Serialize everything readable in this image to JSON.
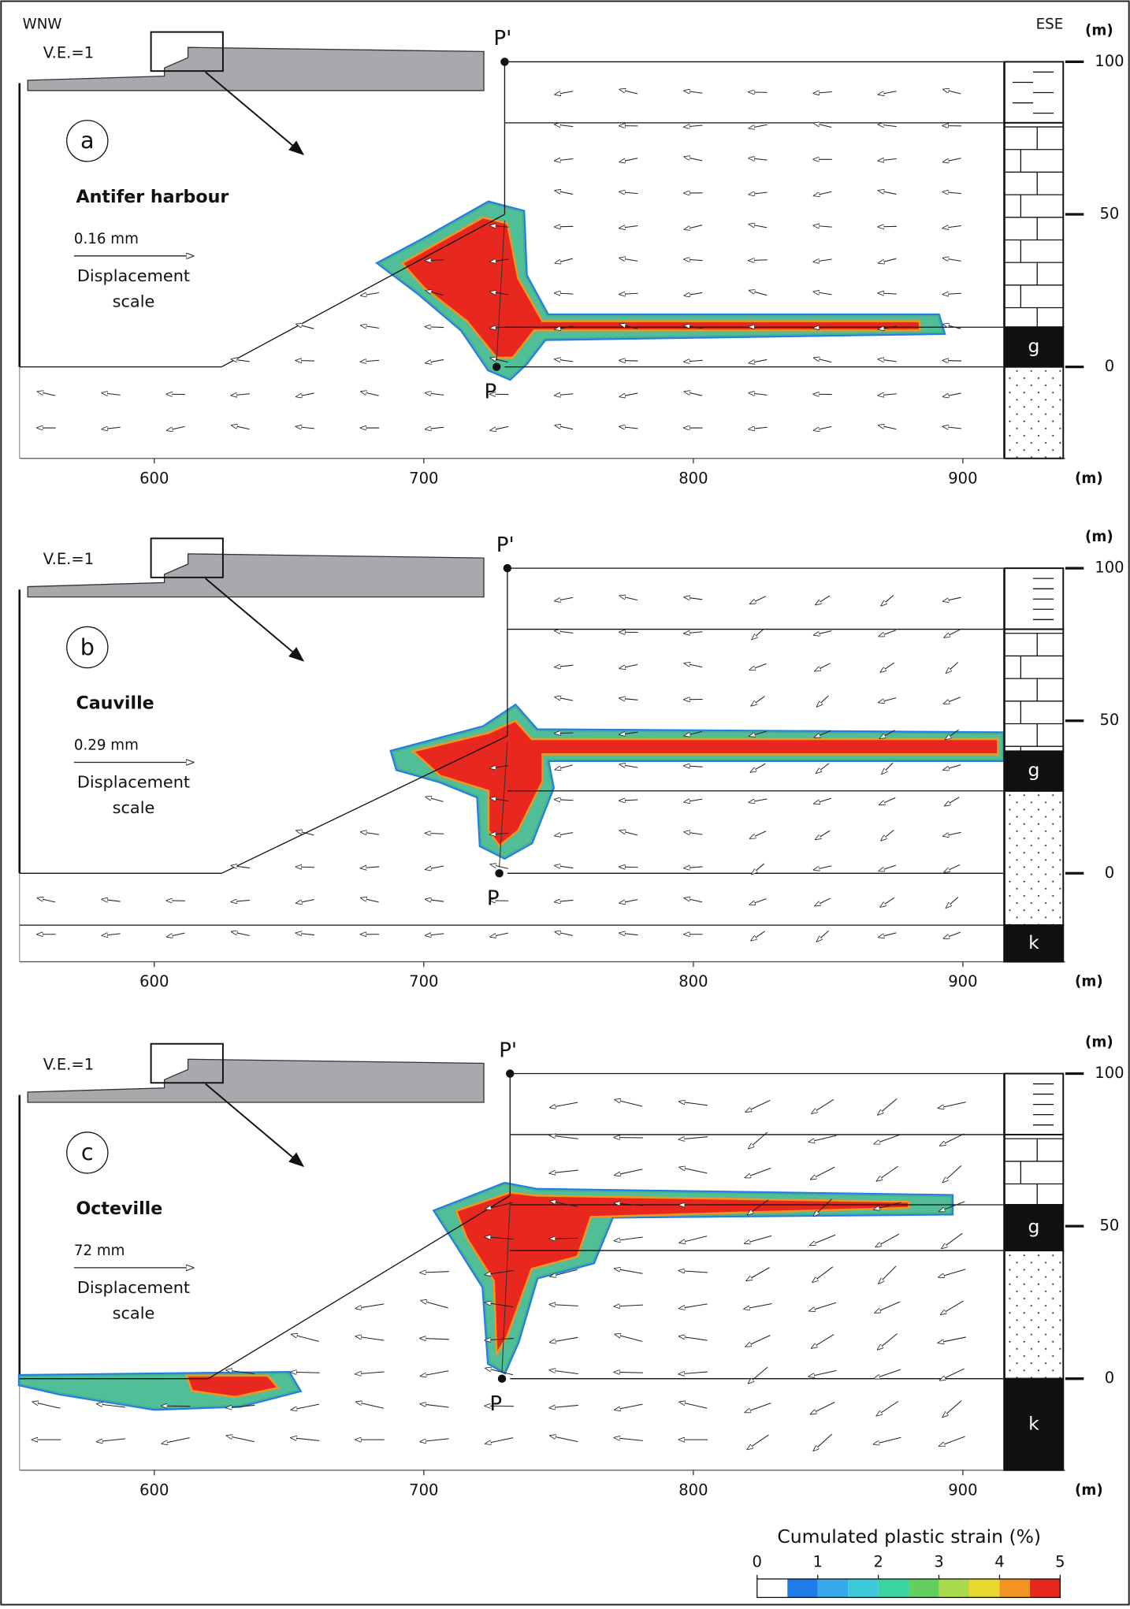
{
  "header": {
    "left": "WNW",
    "right": "ESE"
  },
  "axis": {
    "xlim": [
      550,
      938
    ],
    "xticks": [
      600,
      700,
      800,
      900
    ]
  },
  "panels": [
    {
      "label": "a",
      "site": "Antifer harbour",
      "ve": "V.E.=1",
      "scale_value": "0.16 mm",
      "scale_text": [
        "Displacement",
        "scale"
      ],
      "top_point": "P'",
      "bottom_point": "P",
      "ylim": [
        -30,
        100
      ],
      "yticks": [
        0,
        50,
        100
      ],
      "y_unit": "(m)",
      "x_unit": "(m)",
      "layers": [
        "g"
      ]
    },
    {
      "label": "b",
      "site": "Cauville",
      "ve": "V.E.=1",
      "scale_value": "0.29 mm",
      "scale_text": [
        "Displacement",
        "scale"
      ],
      "top_point": "P'",
      "bottom_point": "P",
      "ylim": [
        -29,
        100
      ],
      "yticks": [
        0,
        50,
        100
      ],
      "y_unit": "(m)",
      "x_unit": "(m)",
      "layers": [
        "g",
        "k"
      ]
    },
    {
      "label": "c",
      "site": "Octeville",
      "ve": "V.E.=1",
      "scale_value": "72 mm",
      "scale_text": [
        "Displacement",
        "scale"
      ],
      "top_point": "P'",
      "bottom_point": "P",
      "ylim": [
        -30,
        100
      ],
      "yticks": [
        0,
        50,
        100
      ],
      "y_unit": "(m)",
      "x_unit": "(m)",
      "layers": [
        "g",
        "k"
      ]
    }
  ],
  "legend": {
    "title": "Cumulated plastic strain (%)",
    "lim": [
      0,
      5
    ],
    "ticks": [
      0,
      1,
      2,
      3,
      4,
      5
    ],
    "colors": [
      "#ffffff",
      "#1f7be8",
      "#35a9ec",
      "#3cc9dc",
      "#3cd3a2",
      "#63cf5f",
      "#aadb4f",
      "#e8d72f",
      "#f39322",
      "#e8281e"
    ]
  }
}
